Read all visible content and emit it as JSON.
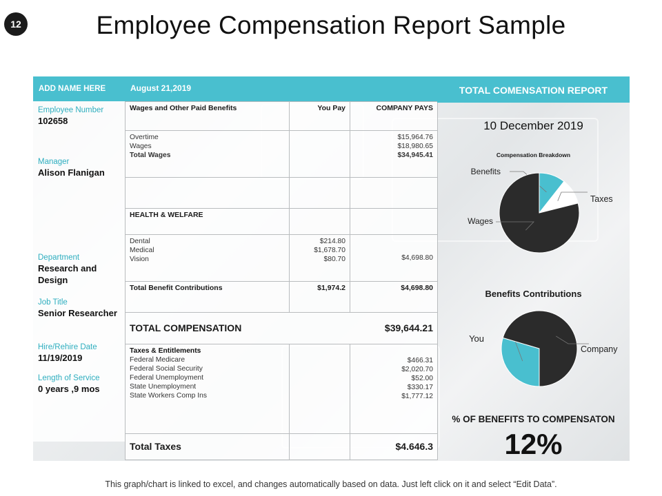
{
  "slide_number": "12",
  "title": "Employee Compensation Report Sample",
  "left": {
    "header": "ADD NAME HERE",
    "fields": [
      {
        "label": "Employee Number",
        "value": "102658"
      },
      {
        "label": "Manager",
        "value": "Alison Flanigan"
      },
      {
        "label": "Department",
        "value": "Research and Design"
      },
      {
        "label": "Job Title",
        "value": "Senior Researcher"
      },
      {
        "label": "Hire/Rehire Date",
        "value": "11/19/2019"
      },
      {
        "label": "Length of Service",
        "value": "0 years ,9 mos"
      }
    ]
  },
  "table": {
    "date_header": "August 21,2019",
    "col1": "Wages and Other Paid Benefits",
    "col2": "You Pay",
    "col3": "COMPANY PAYS",
    "wages": {
      "overtime_label": "Overtime",
      "wages_label": "Wages",
      "total_label": "Total Wages",
      "overtime": "$15,964.76",
      "wages": "$18,980.65",
      "total": "$34,945.41"
    },
    "health_header": "HEALTH & WELFARE",
    "health": {
      "dental_label": "Dental",
      "medical_label": "Medical",
      "vision_label": "Vision",
      "dental": "$214.80",
      "medical": "$1,678.70",
      "vision": "$80.70",
      "company": "$4,698.80"
    },
    "benefit_total_label": "Total Benefit Contributions",
    "benefit_total_you": "$1,974.2",
    "benefit_total_company": "$4,698.80",
    "total_comp_label": "TOTAL COMPENSATION",
    "total_comp_value": "$39,644.21",
    "taxes": {
      "header": "Taxes & Entitlements",
      "items": [
        "Federal Medicare",
        "Federal Social Security",
        "Federal Unemployment",
        "State Unemployment",
        "State Workers Comp Ins"
      ],
      "values": [
        "$466.31",
        "$2,020.70",
        "$52.00",
        "$330.17",
        "$1,777.12"
      ]
    },
    "total_taxes_label": "Total Taxes",
    "total_taxes_value": "$4.646.3"
  },
  "right": {
    "header": "TOTAL COMENSATION  REPORT",
    "report_date": "10 December 2019",
    "pct_title": "% OF BENEFITS TO COMPENSATON",
    "pct_value": "12%"
  },
  "chart_data": [
    {
      "type": "pie",
      "title": "Compensation Breakdown",
      "categories": [
        "Benefits",
        "Taxes",
        "Wages"
      ],
      "values": [
        4698.8,
        4646.3,
        34945.41
      ],
      "colors": [
        "#49bfcf",
        "#ffffff",
        "#2b2b2b"
      ]
    },
    {
      "type": "pie",
      "title": "Benefits Contributions",
      "categories": [
        "You",
        "Company"
      ],
      "values": [
        1974.2,
        4698.8
      ],
      "colors": [
        "#49bfcf",
        "#2b2b2b"
      ]
    }
  ],
  "footer": "This graph/chart is linked to excel, and changes automatically based on data. Just left click on it and select “Edit Data”."
}
